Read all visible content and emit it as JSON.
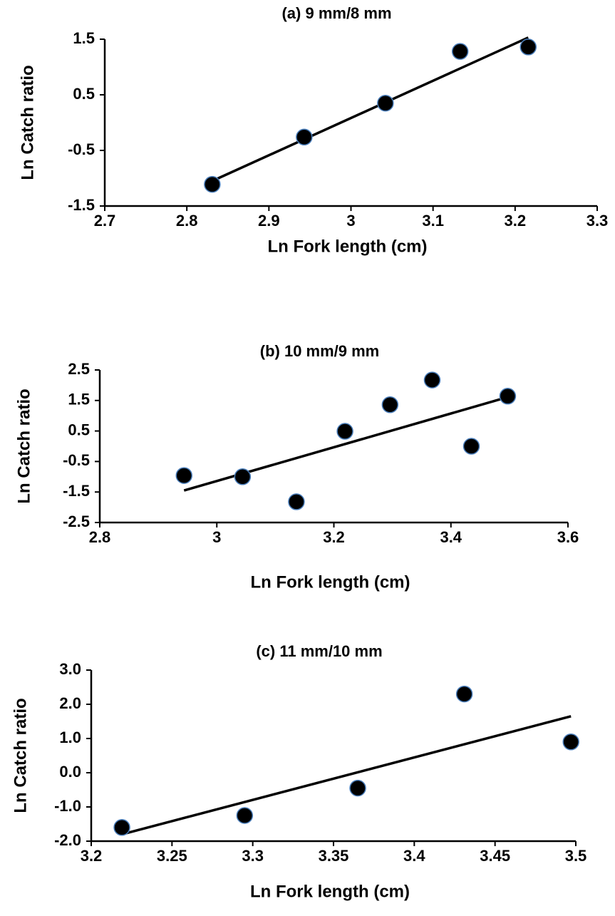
{
  "chart_data": [
    {
      "type": "scatter",
      "title": "(a) 9 mm/8 mm",
      "x_label": "Ln Fork length (cm)",
      "y_label": "Ln Catch ratio",
      "x": [
        2.831,
        2.943,
        3.042,
        3.133,
        3.216
      ],
      "y": [
        -1.11,
        -0.26,
        0.35,
        1.28,
        1.36
      ],
      "color": "#000000",
      "edge_color": "#4a7ebb",
      "trendline": {
        "x": [
          2.831,
          3.216
        ],
        "y": [
          -1.05,
          1.53
        ]
      },
      "xlim": [
        2.7,
        3.3
      ],
      "ylim": [
        -1.5,
        1.5
      ],
      "xticks": [
        2.7,
        2.8,
        2.9,
        3,
        3.1,
        3.2,
        3.3
      ],
      "yticks": [
        -1.5,
        -0.5,
        0.5,
        1.5
      ]
    },
    {
      "type": "scatter",
      "title": "(b) 10 mm/9 mm",
      "x_label": "Ln Fork length (cm)",
      "y_label": "Ln Catch ratio",
      "x": [
        2.944,
        3.044,
        3.136,
        3.219,
        3.296,
        3.368,
        3.435,
        3.497
      ],
      "y": [
        -0.96,
        -1.0,
        -1.82,
        0.49,
        1.36,
        2.17,
        0.0,
        1.64
      ],
      "color": "#000000",
      "edge_color": "#4a7ebb",
      "trendline": {
        "x": [
          2.944,
          3.497
        ],
        "y": [
          -1.45,
          1.61
        ]
      },
      "xlim": [
        2.8,
        3.6
      ],
      "ylim": [
        -2.5,
        2.5
      ],
      "xticks": [
        2.8,
        3,
        3.2,
        3.4,
        3.6
      ],
      "yticks": [
        -2.5,
        -1.5,
        -0.5,
        0.5,
        1.5,
        2.5
      ]
    },
    {
      "type": "scatter",
      "title": "(c) 11 mm/10 mm",
      "x_label": "Ln Fork length (cm)",
      "y_label": "Ln Catch ratio",
      "x": [
        3.219,
        3.295,
        3.365,
        3.431,
        3.497
      ],
      "y": [
        -1.6,
        -1.25,
        -0.45,
        2.3,
        0.9
      ],
      "color": "#000000",
      "edge_color": "#4a7ebb",
      "trendline": {
        "x": [
          3.219,
          3.497
        ],
        "y": [
          -1.8,
          1.65
        ]
      },
      "xlim": [
        3.2,
        3.5
      ],
      "ylim": [
        -2.0,
        3.0
      ],
      "xticks": [
        3.2,
        3.25,
        3.3,
        3.35,
        3.4,
        3.45,
        3.5
      ],
      "yticks": [
        {
          "value": -2,
          "label": "-2.0"
        },
        {
          "value": -1,
          "label": "-1.0"
        },
        {
          "value": 0,
          "label": "0.0"
        },
        {
          "value": 1,
          "label": "1.0"
        },
        {
          "value": 2,
          "label": "2.0"
        },
        {
          "value": 3,
          "label": "3.0"
        }
      ]
    }
  ]
}
